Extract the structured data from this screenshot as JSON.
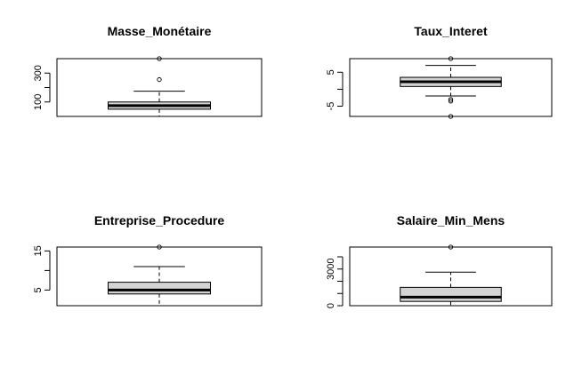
{
  "chart_data": [
    {
      "type": "boxplot",
      "title": "Masse_Monétaire",
      "ylim": [
        0,
        400
      ],
      "yticks": [
        100,
        200,
        300
      ],
      "ytick_labels": [
        "100",
        "",
        "300"
      ],
      "box": {
        "min": 0,
        "q1": 50,
        "median": 75,
        "q3": 100,
        "max": 175
      },
      "outliers": [
        255,
        400
      ]
    },
    {
      "type": "boxplot",
      "title": "Taux_Interet",
      "ylim": [
        -8,
        9
      ],
      "yticks": [
        -5,
        0,
        5
      ],
      "ytick_labels": [
        "-5",
        "",
        "5"
      ],
      "box": {
        "min": -2,
        "q1": 0.8,
        "median": 2.2,
        "q3": 3.5,
        "max": 7
      },
      "outliers": [
        9,
        -3,
        -3.5,
        -8
      ]
    },
    {
      "type": "boxplot",
      "title": "Entreprise_Procedure",
      "ylim": [
        1,
        16
      ],
      "yticks": [
        5,
        10,
        15
      ],
      "ytick_labels": [
        "5",
        "",
        "15"
      ],
      "box": {
        "min": 1,
        "q1": 4,
        "median": 5,
        "q3": 7,
        "max": 11
      },
      "outliers": [
        16
      ]
    },
    {
      "type": "boxplot",
      "title": "Salaire_Min_Mens",
      "ylim": [
        0,
        4800
      ],
      "yticks": [
        0,
        1000,
        2000,
        3000,
        4000
      ],
      "ytick_labels": [
        "0",
        "",
        "",
        "3000",
        ""
      ],
      "box": {
        "min": 0,
        "q1": 350,
        "median": 700,
        "q3": 1500,
        "max": 2750
      },
      "outliers": [
        4800
      ]
    }
  ]
}
